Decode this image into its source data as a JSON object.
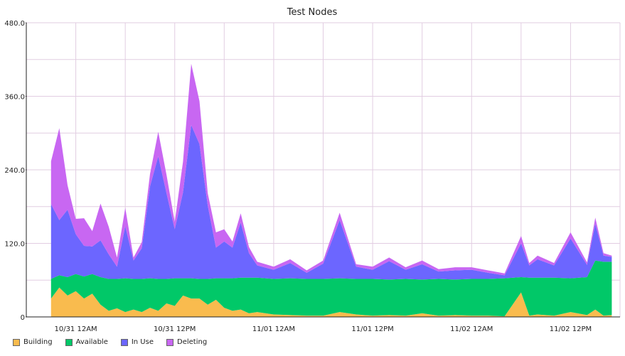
{
  "chart_data": {
    "type": "area",
    "stacked": true,
    "title": "Test Nodes",
    "xlabel": "",
    "ylabel": "",
    "ylim": [
      0,
      480
    ],
    "yticks": [
      "0",
      "120.0",
      "240.0",
      "360.0",
      "480.0"
    ],
    "ytick_values": [
      0,
      120,
      240,
      360,
      480
    ],
    "grid": true,
    "legend_position": "bottom-left",
    "xlim_hours": [
      -6,
      66
    ],
    "xticks": [
      {
        "label": "10/31 12AM",
        "hour": 0
      },
      {
        "label": "10/31 12PM",
        "hour": 12
      },
      {
        "label": "11/01 12AM",
        "hour": 24
      },
      {
        "label": "11/01 12PM",
        "hour": 36
      },
      {
        "label": "11/02 12AM",
        "hour": 48
      },
      {
        "label": "11/02 12PM",
        "hour": 60
      }
    ],
    "series": [
      {
        "name": "Building",
        "color": "#f9bb4e",
        "points": [
          [
            -3,
            30
          ],
          [
            -2,
            48
          ],
          [
            -1,
            35
          ],
          [
            0,
            42
          ],
          [
            1,
            30
          ],
          [
            2,
            38
          ],
          [
            3,
            20
          ],
          [
            4,
            10
          ],
          [
            5,
            14
          ],
          [
            6,
            8
          ],
          [
            7,
            12
          ],
          [
            8,
            8
          ],
          [
            9,
            15
          ],
          [
            10,
            10
          ],
          [
            11,
            22
          ],
          [
            12,
            18
          ],
          [
            13,
            35
          ],
          [
            14,
            30
          ],
          [
            15,
            30
          ],
          [
            16,
            20
          ],
          [
            17,
            28
          ],
          [
            18,
            15
          ],
          [
            19,
            10
          ],
          [
            20,
            12
          ],
          [
            21,
            6
          ],
          [
            22,
            8
          ],
          [
            24,
            4
          ],
          [
            26,
            3
          ],
          [
            28,
            2
          ],
          [
            30,
            2
          ],
          [
            32,
            8
          ],
          [
            34,
            4
          ],
          [
            36,
            2
          ],
          [
            38,
            3
          ],
          [
            40,
            2
          ],
          [
            42,
            6
          ],
          [
            44,
            2
          ],
          [
            46,
            3
          ],
          [
            48,
            2
          ],
          [
            50,
            2
          ],
          [
            52,
            1
          ],
          [
            54,
            40
          ],
          [
            55,
            2
          ],
          [
            56,
            4
          ],
          [
            58,
            2
          ],
          [
            60,
            8
          ],
          [
            62,
            3
          ],
          [
            63,
            12
          ],
          [
            64,
            2
          ],
          [
            65,
            3
          ]
        ]
      },
      {
        "name": "Available",
        "color": "#01c868",
        "points": [
          [
            -3,
            32
          ],
          [
            -2,
            20
          ],
          [
            -1,
            30
          ],
          [
            0,
            28
          ],
          [
            1,
            36
          ],
          [
            2,
            32
          ],
          [
            3,
            45
          ],
          [
            4,
            52
          ],
          [
            5,
            48
          ],
          [
            6,
            55
          ],
          [
            7,
            50
          ],
          [
            8,
            54
          ],
          [
            9,
            48
          ],
          [
            10,
            52
          ],
          [
            11,
            40
          ],
          [
            12,
            45
          ],
          [
            13,
            28
          ],
          [
            14,
            33
          ],
          [
            15,
            32
          ],
          [
            16,
            42
          ],
          [
            17,
            35
          ],
          [
            18,
            48
          ],
          [
            19,
            53
          ],
          [
            20,
            52
          ],
          [
            21,
            58
          ],
          [
            22,
            56
          ],
          [
            24,
            58
          ],
          [
            26,
            60
          ],
          [
            28,
            60
          ],
          [
            30,
            60
          ],
          [
            32,
            55
          ],
          [
            34,
            58
          ],
          [
            36,
            60
          ],
          [
            38,
            58
          ],
          [
            40,
            60
          ],
          [
            42,
            55
          ],
          [
            44,
            60
          ],
          [
            46,
            58
          ],
          [
            48,
            60
          ],
          [
            50,
            60
          ],
          [
            52,
            62
          ],
          [
            54,
            25
          ],
          [
            55,
            62
          ],
          [
            56,
            60
          ],
          [
            58,
            62
          ],
          [
            60,
            55
          ],
          [
            62,
            62
          ],
          [
            63,
            80
          ],
          [
            64,
            88
          ],
          [
            65,
            87
          ]
        ]
      },
      {
        "name": "In Use",
        "color": "#6c66ff",
        "points": [
          [
            -3,
            122
          ],
          [
            -2,
            90
          ],
          [
            -1,
            110
          ],
          [
            0,
            65
          ],
          [
            1,
            50
          ],
          [
            2,
            45
          ],
          [
            3,
            60
          ],
          [
            4,
            40
          ],
          [
            5,
            20
          ],
          [
            6,
            85
          ],
          [
            7,
            30
          ],
          [
            8,
            50
          ],
          [
            9,
            150
          ],
          [
            10,
            200
          ],
          [
            11,
            140
          ],
          [
            12,
            80
          ],
          [
            13,
            140
          ],
          [
            14,
            250
          ],
          [
            15,
            220
          ],
          [
            16,
            120
          ],
          [
            17,
            50
          ],
          [
            18,
            60
          ],
          [
            19,
            50
          ],
          [
            20,
            90
          ],
          [
            21,
            40
          ],
          [
            22,
            20
          ],
          [
            24,
            15
          ],
          [
            26,
            25
          ],
          [
            28,
            10
          ],
          [
            30,
            25
          ],
          [
            32,
            95
          ],
          [
            34,
            20
          ],
          [
            36,
            15
          ],
          [
            38,
            30
          ],
          [
            40,
            15
          ],
          [
            42,
            25
          ],
          [
            44,
            12
          ],
          [
            46,
            15
          ],
          [
            48,
            15
          ],
          [
            50,
            10
          ],
          [
            52,
            5
          ],
          [
            54,
            55
          ],
          [
            55,
            20
          ],
          [
            56,
            30
          ],
          [
            58,
            20
          ],
          [
            60,
            65
          ],
          [
            62,
            20
          ],
          [
            63,
            60
          ],
          [
            64,
            10
          ],
          [
            65,
            8
          ]
        ]
      },
      {
        "name": "Deleting",
        "color": "#c867f2",
        "points": [
          [
            -3,
            70
          ],
          [
            -2,
            150
          ],
          [
            -1,
            40
          ],
          [
            0,
            25
          ],
          [
            1,
            45
          ],
          [
            2,
            25
          ],
          [
            3,
            60
          ],
          [
            4,
            45
          ],
          [
            5,
            15
          ],
          [
            6,
            30
          ],
          [
            7,
            5
          ],
          [
            8,
            10
          ],
          [
            9,
            20
          ],
          [
            10,
            40
          ],
          [
            11,
            30
          ],
          [
            12,
            12
          ],
          [
            13,
            50
          ],
          [
            14,
            100
          ],
          [
            15,
            70
          ],
          [
            16,
            20
          ],
          [
            17,
            25
          ],
          [
            18,
            20
          ],
          [
            19,
            10
          ],
          [
            20,
            15
          ],
          [
            21,
            10
          ],
          [
            22,
            6
          ],
          [
            24,
            5
          ],
          [
            26,
            6
          ],
          [
            28,
            4
          ],
          [
            30,
            5
          ],
          [
            32,
            12
          ],
          [
            34,
            4
          ],
          [
            36,
            5
          ],
          [
            38,
            6
          ],
          [
            40,
            4
          ],
          [
            42,
            6
          ],
          [
            44,
            4
          ],
          [
            46,
            5
          ],
          [
            48,
            4
          ],
          [
            50,
            4
          ],
          [
            52,
            3
          ],
          [
            54,
            12
          ],
          [
            55,
            4
          ],
          [
            56,
            6
          ],
          [
            58,
            4
          ],
          [
            60,
            10
          ],
          [
            62,
            4
          ],
          [
            63,
            10
          ],
          [
            64,
            4
          ],
          [
            65,
            2
          ]
        ]
      }
    ]
  }
}
